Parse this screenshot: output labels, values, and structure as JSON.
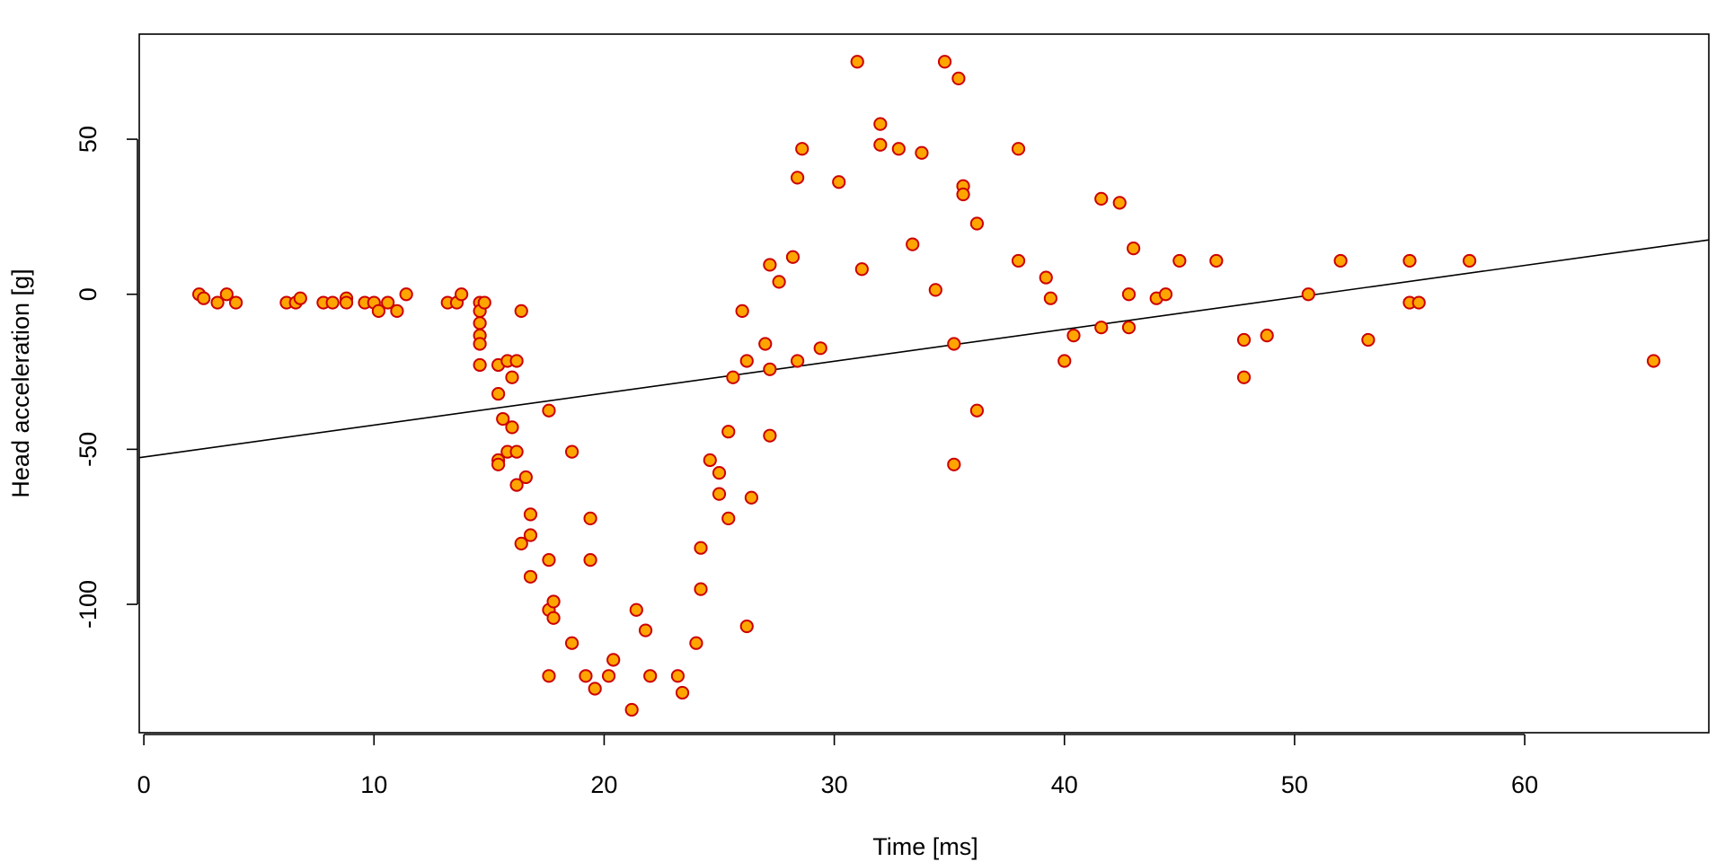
{
  "chart_data": {
    "type": "scatter",
    "title": "",
    "xlabel": "Time [ms]",
    "ylabel": "Head acceleration [g]",
    "xlim": [
      -0.2,
      68.0
    ],
    "ylim": [
      -141.4,
      83.9
    ],
    "x_ticks": [
      0,
      10,
      20,
      30,
      40,
      50,
      60
    ],
    "y_ticks": [
      -100,
      -50,
      0,
      50
    ],
    "grid": false,
    "legend": "none",
    "colors": {
      "point_fill": "#FFA500",
      "point_stroke": "#CC0000",
      "line": "#000000"
    },
    "points": [
      [
        2.4,
        0.0
      ],
      [
        2.6,
        -1.3
      ],
      [
        3.2,
        -2.7
      ],
      [
        3.6,
        0.0
      ],
      [
        4.0,
        -2.7
      ],
      [
        6.2,
        -2.7
      ],
      [
        6.6,
        -2.7
      ],
      [
        6.8,
        -1.3
      ],
      [
        7.8,
        -2.7
      ],
      [
        8.2,
        -2.7
      ],
      [
        8.8,
        -1.3
      ],
      [
        8.8,
        -2.7
      ],
      [
        9.6,
        -2.7
      ],
      [
        10.0,
        -2.7
      ],
      [
        10.2,
        -5.4
      ],
      [
        10.6,
        -2.7
      ],
      [
        11.0,
        -5.4
      ],
      [
        11.4,
        0.0
      ],
      [
        13.2,
        -2.7
      ],
      [
        13.6,
        -2.7
      ],
      [
        13.8,
        0.0
      ],
      [
        14.6,
        -2.7
      ],
      [
        14.6,
        -5.4
      ],
      [
        14.6,
        -9.3
      ],
      [
        14.6,
        -13.3
      ],
      [
        14.6,
        -16.0
      ],
      [
        14.6,
        -22.8
      ],
      [
        14.8,
        -2.7
      ],
      [
        15.4,
        -22.8
      ],
      [
        15.4,
        -32.1
      ],
      [
        15.4,
        -53.5
      ],
      [
        15.4,
        -54.9
      ],
      [
        15.6,
        -40.2
      ],
      [
        15.8,
        -21.5
      ],
      [
        15.8,
        -50.8
      ],
      [
        16.0,
        -42.9
      ],
      [
        16.0,
        -26.8
      ],
      [
        16.2,
        -21.5
      ],
      [
        16.2,
        -50.8
      ],
      [
        16.2,
        -61.5
      ],
      [
        16.4,
        -5.4
      ],
      [
        16.4,
        -80.4
      ],
      [
        16.6,
        -59.0
      ],
      [
        16.8,
        -71.0
      ],
      [
        16.8,
        -77.7
      ],
      [
        16.8,
        -91.1
      ],
      [
        17.6,
        -37.5
      ],
      [
        17.6,
        -85.7
      ],
      [
        17.6,
        -101.8
      ],
      [
        17.6,
        -123.1
      ],
      [
        17.8,
        -99.1
      ],
      [
        17.8,
        -104.4
      ],
      [
        18.6,
        -112.5
      ],
      [
        18.6,
        -50.8
      ],
      [
        19.2,
        -123.1
      ],
      [
        19.4,
        -72.3
      ],
      [
        19.4,
        -85.7
      ],
      [
        19.6,
        -127.2
      ],
      [
        20.2,
        -123.1
      ],
      [
        20.4,
        -117.9
      ],
      [
        21.2,
        -134.0
      ],
      [
        21.4,
        -101.8
      ],
      [
        21.8,
        -108.4
      ],
      [
        22.0,
        -123.1
      ],
      [
        23.2,
        -123.1
      ],
      [
        23.4,
        -128.5
      ],
      [
        24.0,
        -112.5
      ],
      [
        24.2,
        -81.8
      ],
      [
        24.2,
        -95.1
      ],
      [
        24.6,
        -53.5
      ],
      [
        25.0,
        -64.4
      ],
      [
        25.0,
        -57.6
      ],
      [
        25.4,
        -72.3
      ],
      [
        25.4,
        -44.3
      ],
      [
        25.6,
        -26.8
      ],
      [
        26.0,
        -5.4
      ],
      [
        26.2,
        -21.5
      ],
      [
        26.2,
        -107.1
      ],
      [
        26.4,
        -65.6
      ],
      [
        27.0,
        -16.0
      ],
      [
        27.2,
        9.5
      ],
      [
        27.2,
        -24.2
      ],
      [
        27.2,
        -45.6
      ],
      [
        27.6,
        4.0
      ],
      [
        28.2,
        12.0
      ],
      [
        28.4,
        37.6
      ],
      [
        28.4,
        -21.5
      ],
      [
        28.6,
        46.9
      ],
      [
        29.4,
        -17.4
      ],
      [
        30.2,
        36.2
      ],
      [
        31.0,
        75.0
      ],
      [
        31.2,
        8.1
      ],
      [
        32.0,
        54.9
      ],
      [
        32.0,
        48.2
      ],
      [
        32.8,
        46.9
      ],
      [
        33.4,
        16.1
      ],
      [
        33.8,
        45.6
      ],
      [
        34.4,
        1.4
      ],
      [
        34.8,
        75.0
      ],
      [
        35.2,
        -16.0
      ],
      [
        35.2,
        -54.9
      ],
      [
        35.4,
        69.6
      ],
      [
        35.6,
        34.9
      ],
      [
        35.6,
        32.2
      ],
      [
        36.2,
        22.8
      ],
      [
        36.2,
        -37.5
      ],
      [
        38.0,
        46.9
      ],
      [
        38.0,
        10.8
      ],
      [
        39.2,
        5.4
      ],
      [
        39.4,
        -1.3
      ],
      [
        40.0,
        -21.5
      ],
      [
        40.4,
        -13.3
      ],
      [
        41.6,
        30.8
      ],
      [
        41.6,
        -10.7
      ],
      [
        42.4,
        29.5
      ],
      [
        42.8,
        0.0
      ],
      [
        42.8,
        -10.7
      ],
      [
        43.0,
        14.8
      ],
      [
        44.0,
        -1.3
      ],
      [
        44.4,
        0.0
      ],
      [
        45.0,
        10.8
      ],
      [
        46.6,
        10.8
      ],
      [
        47.8,
        -14.7
      ],
      [
        47.8,
        -26.8
      ],
      [
        48.8,
        -13.3
      ],
      [
        50.6,
        0.0
      ],
      [
        52.0,
        10.8
      ],
      [
        53.2,
        -14.7
      ],
      [
        55.0,
        10.8
      ],
      [
        55.0,
        -2.7
      ],
      [
        55.4,
        -2.7
      ],
      [
        57.6,
        10.8
      ],
      [
        65.6,
        -21.5
      ]
    ],
    "fit_line": {
      "intercept": -52.5,
      "slope": 1.03
    }
  }
}
